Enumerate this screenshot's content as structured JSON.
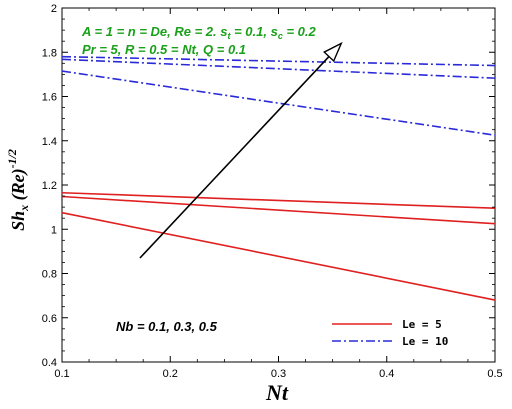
{
  "chart_data": {
    "type": "line",
    "title": "",
    "xlabel": "Nt",
    "ylabel": {
      "base": "Sh",
      "sub": "x",
      "mid": " (Re)",
      "sup": "-1/2"
    },
    "xlim": [
      0.1,
      0.5
    ],
    "ylim": [
      0.4,
      2.0
    ],
    "xticks": [
      "0.1",
      "0.2",
      "0.3",
      "0.4",
      "0.5"
    ],
    "yticks": [
      "0.4",
      "0.6",
      "0.8",
      "1",
      "1.2",
      "1.4",
      "1.6",
      "1.8",
      "2"
    ],
    "grid": false,
    "legend_position": "bottom-right",
    "legend": [
      {
        "label": "Le = 5",
        "color": "#e02020",
        "dash": "solid"
      },
      {
        "label": "Le = 10",
        "color": "#2a2ad8",
        "dash": "dashdot"
      }
    ],
    "series": [
      {
        "group": "Le = 5",
        "x": [
          0.1,
          0.5
        ],
        "y": [
          1.165,
          1.095
        ]
      },
      {
        "group": "Le = 5",
        "x": [
          0.1,
          0.5
        ],
        "y": [
          1.148,
          1.025
        ]
      },
      {
        "group": "Le = 5",
        "x": [
          0.1,
          0.5
        ],
        "y": [
          1.075,
          0.68
        ]
      },
      {
        "group": "Le = 10",
        "x": [
          0.1,
          0.5
        ],
        "y": [
          1.78,
          1.74
        ]
      },
      {
        "group": "Le = 10",
        "x": [
          0.1,
          0.5
        ],
        "y": [
          1.768,
          1.683
        ]
      },
      {
        "group": "Le = 10",
        "x": [
          0.1,
          0.5
        ],
        "y": [
          1.715,
          1.425
        ]
      }
    ],
    "annotations": [
      "A = 1 = n = De, Re = 2. s_t = 0.1, s_c = 0.2",
      "Pr = 5, R = 0.5 = Nt, Q = 0.1",
      "Nb = 0.1, 0.3, 0.5"
    ],
    "arrow": {
      "from": [
        0.172,
        0.87
      ],
      "to": [
        0.358,
        1.84
      ]
    }
  },
  "annotation_line1": {
    "part1": "A = 1 = n = De, Re = 2. s",
    "sub1": "t",
    "part2": " = 0.1, s",
    "sub2": "c",
    "part3": " = 0.2"
  },
  "annotation_line2": "Pr = 5, R = 0.5 = Nt, Q = 0.1",
  "annotation_nb": "Nb = 0.1, 0.3, 0.5",
  "colors": {
    "le5": "#e02020",
    "le10": "#2a2ad8",
    "annotation": "#1aa01a"
  }
}
